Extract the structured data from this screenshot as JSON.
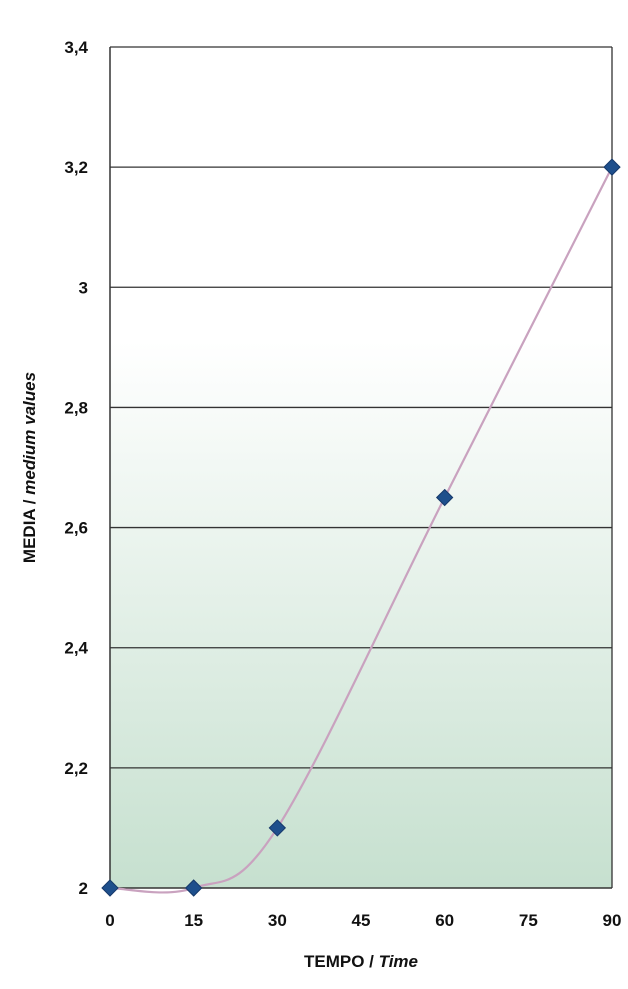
{
  "chart_data": {
    "type": "line",
    "x": [
      0,
      15,
      30,
      60,
      90
    ],
    "values": [
      2.0,
      2.0,
      2.1,
      2.65,
      3.2
    ],
    "xticks": [
      0,
      15,
      30,
      45,
      60,
      75,
      90
    ],
    "xtick_labels": [
      "0",
      "15",
      "30",
      "45",
      "60",
      "75",
      "90"
    ],
    "yticks": [
      2.0,
      2.2,
      2.4,
      2.6,
      2.8,
      3.0,
      3.2,
      3.4
    ],
    "ytick_labels": [
      "2",
      "2,2",
      "2,4",
      "2,6",
      "2,8",
      "3",
      "3,2",
      "3,4"
    ],
    "xlim": [
      0,
      90
    ],
    "ylim": [
      2.0,
      3.4
    ],
    "xlabel": {
      "main": "TEMPO / ",
      "italic": "Time"
    },
    "ylabel": {
      "main": "MEDIA / ",
      "italic": "medium values"
    },
    "grid": "horizontal",
    "smooth": true,
    "colors": {
      "line": "#c9a2bf",
      "marker": "#1e4f8c",
      "grid": "#333333",
      "fill_top": "#ffffff",
      "fill_bottom": "#c6e0cf"
    }
  }
}
